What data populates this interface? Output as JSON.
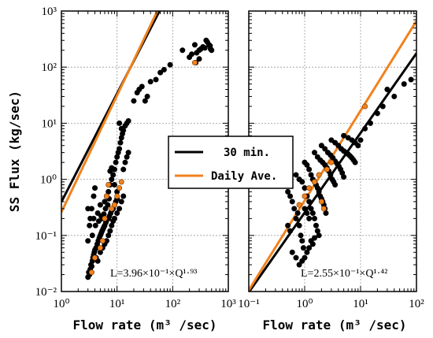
{
  "chart_data": [
    {
      "type": "scatter",
      "xscale": "log",
      "yscale": "log",
      "xlim": [
        1,
        1000
      ],
      "ylim": [
        0.01,
        1000
      ],
      "xlabel": "Flow rate (m³ /sec)",
      "ylabel": "SS Flux (kg/sec)",
      "x_ticks": [
        {
          "value": 1,
          "label": "10⁰"
        },
        {
          "value": 10,
          "label": "10¹"
        },
        {
          "value": 100,
          "label": "10²"
        },
        {
          "value": 1000,
          "label": "10³"
        }
      ],
      "y_ticks": [
        {
          "value": 0.01,
          "label": "10⁻²"
        },
        {
          "value": 0.1,
          "label": "10⁻¹"
        },
        {
          "value": 1,
          "label": "10⁰"
        },
        {
          "value": 10,
          "label": "10¹"
        },
        {
          "value": 100,
          "label": "10²"
        },
        {
          "value": 1000,
          "label": "10³"
        }
      ],
      "annotation": {
        "text": "L=3.96×10⁻¹×Q¹·⁹³",
        "x": 2.5,
        "y": 0.015
      },
      "series": [
        {
          "name": "30 min.",
          "kind": "points+fit",
          "color": "#000000",
          "fit": {
            "a": 0.396,
            "b": 1.93
          },
          "points": [
            [
              3,
              0.018
            ],
            [
              3.1,
              0.022
            ],
            [
              3.2,
              0.02
            ],
            [
              3.3,
              0.025
            ],
            [
              3.4,
              0.03
            ],
            [
              3.5,
              0.028
            ],
            [
              3.6,
              0.035
            ],
            [
              3.7,
              0.04
            ],
            [
              3.8,
              0.045
            ],
            [
              3.9,
              0.05
            ],
            [
              4,
              0.055
            ],
            [
              4.2,
              0.06
            ],
            [
              4.4,
              0.07
            ],
            [
              4.6,
              0.08
            ],
            [
              4.8,
              0.09
            ],
            [
              5,
              0.1
            ],
            [
              5.2,
              0.11
            ],
            [
              5.4,
              0.12
            ],
            [
              5.6,
              0.13
            ],
            [
              5.8,
              0.14
            ],
            [
              6,
              0.15
            ],
            [
              6.3,
              0.17
            ],
            [
              6.6,
              0.19
            ],
            [
              7,
              0.2
            ],
            [
              7.3,
              0.22
            ],
            [
              7.7,
              0.25
            ],
            [
              8,
              0.28
            ],
            [
              8.5,
              0.3
            ],
            [
              9,
              0.35
            ],
            [
              9.5,
              0.4
            ],
            [
              10,
              0.45
            ],
            [
              3,
              0.08
            ],
            [
              3.2,
              0.15
            ],
            [
              3.5,
              0.3
            ],
            [
              3.8,
              0.5
            ],
            [
              4,
              0.7
            ],
            [
              4.5,
              0.25
            ],
            [
              5,
              0.35
            ],
            [
              5.5,
              0.2
            ],
            [
              6,
              0.4
            ],
            [
              6.5,
              0.5
            ],
            [
              7,
              0.6
            ],
            [
              7.5,
              0.8
            ],
            [
              8,
              1.0
            ],
            [
              8.5,
              1.2
            ],
            [
              9,
              1.5
            ],
            [
              9.5,
              2.0
            ],
            [
              10,
              2.5
            ],
            [
              10.5,
              3.0
            ],
            [
              11,
              3.5
            ],
            [
              11.5,
              4.5
            ],
            [
              12,
              5.5
            ],
            [
              12.5,
              6.5
            ],
            [
              13,
              7.5
            ],
            [
              14,
              9
            ],
            [
              15,
              10
            ],
            [
              16,
              11
            ],
            [
              11,
              10
            ],
            [
              12,
              8
            ],
            [
              13,
              1.5
            ],
            [
              14,
              2.0
            ],
            [
              15,
              2.5
            ],
            [
              16,
              3.0
            ],
            [
              10,
              0.6
            ],
            [
              9,
              0.8
            ],
            [
              8,
              1.6
            ],
            [
              7.5,
              1.4
            ],
            [
              3,
              0.3
            ],
            [
              3.3,
              0.2
            ],
            [
              3.6,
              0.1
            ],
            [
              4.2,
              0.04
            ],
            [
              4.5,
              0.035
            ],
            [
              5,
              0.05
            ],
            [
              5.5,
              0.06
            ],
            [
              6,
              0.07
            ],
            [
              6.5,
              0.08
            ],
            [
              7,
              0.1
            ],
            [
              7.5,
              0.12
            ],
            [
              8,
              0.15
            ],
            [
              8.5,
              0.18
            ],
            [
              9,
              0.2
            ],
            [
              10,
              0.25
            ],
            [
              11,
              0.3
            ],
            [
              12,
              0.4
            ],
            [
              13,
              0.5
            ],
            [
              3.8,
              0.2
            ],
            [
              4.1,
              0.15
            ],
            [
              4.7,
              0.18
            ],
            [
              5.2,
              0.22
            ],
            [
              5.8,
              0.24
            ],
            [
              6.2,
              0.3
            ],
            [
              6.8,
              0.35
            ],
            [
              7.2,
              0.45
            ],
            [
              20,
              25
            ],
            [
              23,
              35
            ],
            [
              25,
              40
            ],
            [
              28,
              45
            ],
            [
              32,
              25
            ],
            [
              35,
              30
            ],
            [
              40,
              55
            ],
            [
              50,
              60
            ],
            [
              60,
              80
            ],
            [
              70,
              90
            ],
            [
              90,
              110
            ],
            [
              150,
              200
            ],
            [
              200,
              150
            ],
            [
              220,
              170
            ],
            [
              250,
              250
            ],
            [
              270,
              180
            ],
            [
              300,
              200
            ],
            [
              320,
              210
            ],
            [
              350,
              230
            ],
            [
              380,
              220
            ],
            [
              400,
              300
            ],
            [
              420,
              280
            ],
            [
              450,
              250
            ],
            [
              470,
              240
            ],
            [
              480,
              210
            ],
            [
              500,
              200
            ],
            [
              300,
              140
            ],
            [
              260,
              120
            ]
          ]
        },
        {
          "name": "Daily Ave.",
          "kind": "points+fit",
          "color": "#f0821e",
          "fit": {
            "a": 0.26,
            "b": 2.08
          },
          "points": [
            [
              3.5,
              0.022
            ],
            [
              4,
              0.04
            ],
            [
              5,
              0.06
            ],
            [
              5.5,
              0.08
            ],
            [
              6,
              0.2
            ],
            [
              6.5,
              0.5
            ],
            [
              7,
              0.8
            ],
            [
              8,
              0.3
            ],
            [
              9,
              0.35
            ],
            [
              10,
              0.5
            ],
            [
              11,
              0.7
            ],
            [
              12,
              0.9
            ],
            [
              250,
              120
            ]
          ]
        }
      ]
    },
    {
      "type": "scatter",
      "xscale": "log",
      "yscale": "log",
      "xlim": [
        0.1,
        100
      ],
      "ylim": [
        0.01,
        1000
      ],
      "xlabel": "Flow rate (m³ /sec)",
      "ylabel": "",
      "x_ticks": [
        {
          "value": 0.1,
          "label": "10⁻¹"
        },
        {
          "value": 1,
          "label": "10⁰"
        },
        {
          "value": 10,
          "label": "10¹"
        },
        {
          "value": 100,
          "label": "10²"
        }
      ],
      "annotation": {
        "text": "L=2.55×10⁻¹×Q¹·⁴²",
        "x": 0.6,
        "y": 0.015
      },
      "series": [
        {
          "name": "30 min.",
          "kind": "points+fit",
          "color": "#000000",
          "fit": {
            "a": 0.255,
            "b": 1.42
          },
          "points": [
            [
              0.5,
              0.6
            ],
            [
              0.55,
              0.5
            ],
            [
              0.6,
              0.4
            ],
            [
              0.65,
              0.3
            ],
            [
              0.7,
              0.2
            ],
            [
              0.75,
              0.25
            ],
            [
              0.8,
              0.15
            ],
            [
              0.85,
              0.1
            ],
            [
              0.9,
              0.08
            ],
            [
              0.95,
              0.06
            ],
            [
              0.7,
              1.2
            ],
            [
              0.8,
              1.0
            ],
            [
              0.9,
              0.9
            ],
            [
              1.0,
              0.7
            ],
            [
              1.1,
              0.5
            ],
            [
              1.2,
              0.4
            ],
            [
              1.3,
              0.3
            ],
            [
              1.4,
              0.25
            ],
            [
              1.5,
              0.2
            ],
            [
              1.6,
              0.15
            ],
            [
              1.7,
              0.12
            ],
            [
              1.8,
              0.1
            ],
            [
              1.0,
              2.0
            ],
            [
              1.1,
              1.8
            ],
            [
              1.2,
              1.5
            ],
            [
              1.3,
              1.2
            ],
            [
              1.4,
              1.0
            ],
            [
              1.5,
              0.9
            ],
            [
              1.6,
              0.8
            ],
            [
              1.7,
              0.7
            ],
            [
              1.8,
              0.6
            ],
            [
              1.9,
              0.5
            ],
            [
              2.0,
              0.45
            ],
            [
              2.1,
              0.4
            ],
            [
              2.2,
              0.35
            ],
            [
              2.3,
              0.3
            ],
            [
              2.4,
              0.25
            ],
            [
              1.5,
              3.0
            ],
            [
              1.7,
              2.5
            ],
            [
              1.9,
              2.2
            ],
            [
              2.1,
              2.0
            ],
            [
              2.3,
              1.8
            ],
            [
              2.5,
              1.6
            ],
            [
              2.7,
              1.4
            ],
            [
              2.9,
              1.2
            ],
            [
              3.1,
              1.0
            ],
            [
              3.3,
              0.9
            ],
            [
              3.5,
              0.8
            ],
            [
              2.0,
              4.0
            ],
            [
              2.3,
              3.5
            ],
            [
              2.6,
              3.0
            ],
            [
              2.9,
              2.7
            ],
            [
              3.2,
              2.4
            ],
            [
              3.5,
              2.1
            ],
            [
              3.8,
              1.9
            ],
            [
              4.1,
              1.7
            ],
            [
              4.4,
              1.5
            ],
            [
              4.7,
              1.3
            ],
            [
              5.0,
              1.1
            ],
            [
              3.0,
              5.0
            ],
            [
              3.5,
              4.5
            ],
            [
              4.0,
              4.0
            ],
            [
              4.5,
              3.5
            ],
            [
              5.0,
              3.2
            ],
            [
              5.5,
              3.0
            ],
            [
              6.0,
              2.8
            ],
            [
              6.5,
              2.6
            ],
            [
              7.0,
              2.4
            ],
            [
              7.5,
              2.2
            ],
            [
              8.0,
              2.0
            ],
            [
              5.0,
              6.0
            ],
            [
              6.0,
              5.5
            ],
            [
              7.0,
              5.0
            ],
            [
              8.0,
              4.5
            ],
            [
              9.0,
              4.0
            ],
            [
              10,
              5.0
            ],
            [
              12,
              8.0
            ],
            [
              15,
              10
            ],
            [
              20,
              15
            ],
            [
              25,
              20
            ],
            [
              30,
              40
            ],
            [
              40,
              30
            ],
            [
              60,
              50
            ],
            [
              80,
              60
            ],
            [
              0.6,
              0.05
            ],
            [
              0.7,
              0.04
            ],
            [
              0.8,
              0.03
            ],
            [
              0.9,
              0.035
            ],
            [
              1.0,
              0.04
            ],
            [
              1.1,
              0.05
            ],
            [
              1.2,
              0.06
            ],
            [
              1.3,
              0.08
            ],
            [
              1.4,
              0.07
            ],
            [
              1.5,
              0.09
            ],
            [
              1.0,
              0.3
            ],
            [
              1.1,
              0.25
            ],
            [
              1.2,
              0.2
            ],
            [
              0.5,
              0.15
            ],
            [
              0.55,
              0.12
            ]
          ]
        },
        {
          "name": "Daily Ave.",
          "kind": "points+fit",
          "color": "#f0821e",
          "fit": {
            "a": 0.42,
            "b": 1.6
          },
          "points": [
            [
              0.8,
              0.35
            ],
            [
              1.0,
              0.5
            ],
            [
              1.2,
              0.7
            ],
            [
              1.5,
              0.9
            ],
            [
              1.8,
              1.2
            ],
            [
              2.0,
              0.4
            ],
            [
              2.2,
              0.3
            ],
            [
              2.5,
              1.5
            ],
            [
              3.0,
              2.0
            ],
            [
              12,
              20
            ]
          ]
        }
      ]
    }
  ],
  "legend": {
    "placement": "center",
    "items": [
      {
        "label": "30 min.",
        "color": "#000000"
      },
      {
        "label": "Daily Ave.",
        "color": "#f0821e"
      }
    ]
  }
}
